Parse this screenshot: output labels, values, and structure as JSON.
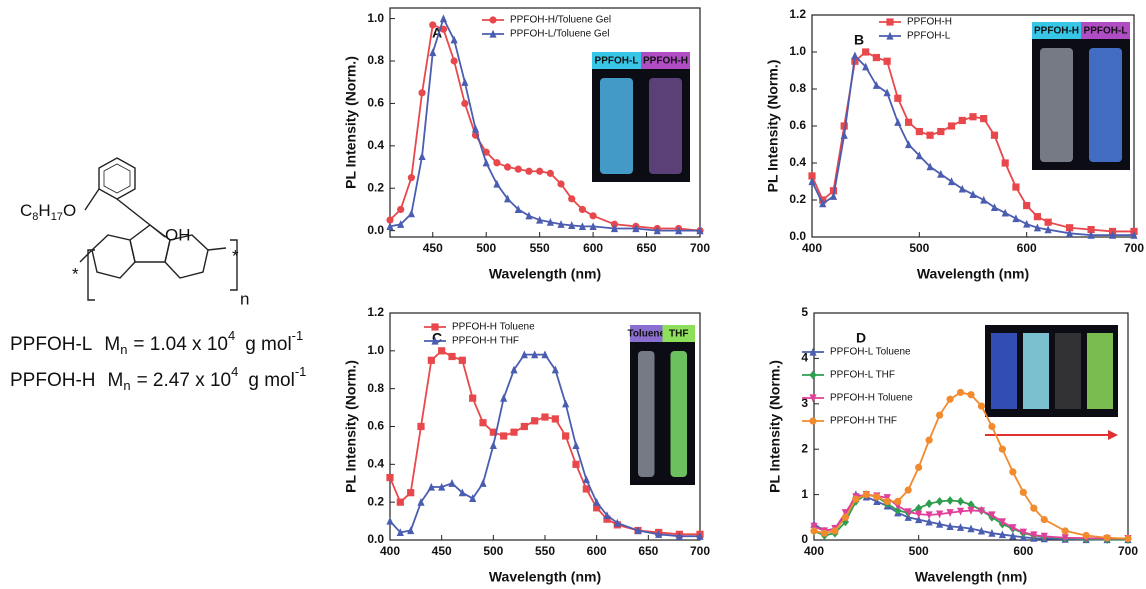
{
  "structure": {
    "substituent": [
      "C",
      "8",
      "H",
      "17",
      "O"
    ],
    "hydroxyl": "OH",
    "end_left": "*",
    "end_right": "*",
    "repeat": "n",
    "polymers": [
      {
        "name": "PPFOH-L",
        "mn": [
          "M",
          "n",
          "= 1.04 x 10",
          "4",
          "g mol",
          "-1"
        ]
      },
      {
        "name": "PPFOH-H",
        "mn": [
          "M",
          "n",
          "= 2.47 x 10",
          "4",
          "g mol",
          "-1"
        ]
      }
    ]
  },
  "chart_data": [
    {
      "type": "line",
      "panel_label": "A",
      "x_label": "Wavelength (nm)",
      "y_label": "PL Intensity (Norm.)",
      "inset_labels": [
        "PPFOH-L",
        "PPFOH-H"
      ],
      "x": [
        410,
        420,
        430,
        440,
        450,
        460,
        470,
        480,
        490,
        500,
        510,
        520,
        530,
        540,
        550,
        560,
        570,
        580,
        590,
        600,
        620,
        640,
        660,
        680,
        700
      ],
      "xlim": [
        410,
        700
      ],
      "xticks": [
        450,
        500,
        550,
        600,
        650,
        700
      ],
      "ylim": [
        -0.03,
        1.05
      ],
      "yticks": [
        {
          "value": 0,
          "label": "0.0"
        },
        0.2,
        0.4,
        0.6,
        0.8,
        {
          "value": 1,
          "label": "1.0"
        }
      ],
      "series": [
        {
          "name": "PPFOH-H/Toluene Gel",
          "color": "#e8474b",
          "marker": "circle",
          "values": [
            0.05,
            0.1,
            0.25,
            0.65,
            0.97,
            0.95,
            0.8,
            0.6,
            0.45,
            0.37,
            0.32,
            0.3,
            0.29,
            0.28,
            0.28,
            0.27,
            0.22,
            0.15,
            0.1,
            0.07,
            0.03,
            0.02,
            0.01,
            0.01,
            0
          ]
        },
        {
          "name": "PPFOH-L/Toluene Gel",
          "color": "#4a5db0",
          "marker": "triangle",
          "values": [
            0.02,
            0.03,
            0.08,
            0.35,
            0.84,
            1.0,
            0.9,
            0.7,
            0.48,
            0.32,
            0.22,
            0.15,
            0.1,
            0.07,
            0.05,
            0.04,
            0.03,
            0.025,
            0.02,
            0.02,
            0.01,
            0.01,
            0,
            0,
            0
          ]
        }
      ]
    },
    {
      "type": "line",
      "panel_label": "B",
      "x_label": "Wavelength (nm)",
      "y_label": "PL Intensity (Norm.)",
      "inset_labels": [
        "PPFOH-H",
        "PPFOH-L"
      ],
      "x": [
        400,
        410,
        420,
        430,
        440,
        450,
        460,
        470,
        480,
        490,
        500,
        510,
        520,
        530,
        540,
        550,
        560,
        570,
        580,
        590,
        600,
        610,
        620,
        640,
        660,
        680,
        700
      ],
      "xlim": [
        400,
        700
      ],
      "xticks": [
        400,
        500,
        600,
        700
      ],
      "ylim": [
        0,
        1.2
      ],
      "yticks": [
        {
          "value": 0,
          "label": "0.0"
        },
        0.2,
        0.4,
        0.6,
        0.8,
        {
          "value": 1,
          "label": "1.0"
        },
        1.2
      ],
      "series": [
        {
          "name": "PPFOH-H",
          "color": "#e8474b",
          "marker": "square",
          "values": [
            0.33,
            0.2,
            0.25,
            0.6,
            0.95,
            1.0,
            0.97,
            0.95,
            0.75,
            0.62,
            0.57,
            0.55,
            0.57,
            0.6,
            0.63,
            0.65,
            0.64,
            0.55,
            0.4,
            0.27,
            0.17,
            0.11,
            0.08,
            0.05,
            0.04,
            0.03,
            0.03
          ]
        },
        {
          "name": "PPFOH-L",
          "color": "#4a5db0",
          "marker": "triangle",
          "values": [
            0.3,
            0.18,
            0.22,
            0.55,
            0.98,
            0.92,
            0.82,
            0.78,
            0.62,
            0.5,
            0.44,
            0.38,
            0.34,
            0.3,
            0.26,
            0.23,
            0.2,
            0.16,
            0.13,
            0.1,
            0.07,
            0.05,
            0.04,
            0.02,
            0.01,
            0.01,
            0.01
          ]
        }
      ]
    },
    {
      "type": "line",
      "panel_label": "C",
      "x_label": "Wavelength (nm)",
      "y_label": "PL Intensity (Norm.)",
      "inset_labels": [
        "Toluene",
        "THF"
      ],
      "x": [
        400,
        410,
        420,
        430,
        440,
        450,
        460,
        470,
        480,
        490,
        500,
        510,
        520,
        530,
        540,
        550,
        560,
        570,
        580,
        590,
        600,
        610,
        620,
        640,
        660,
        680,
        700
      ],
      "xlim": [
        400,
        700
      ],
      "xticks": [
        400,
        450,
        500,
        550,
        600,
        650,
        700
      ],
      "ylim": [
        0,
        1.2
      ],
      "yticks": [
        {
          "value": 0,
          "label": "0.0"
        },
        0.2,
        0.4,
        0.6,
        0.8,
        {
          "value": 1,
          "label": "1.0"
        },
        1.2
      ],
      "series": [
        {
          "name": "PPFOH-H Toluene",
          "color": "#e8474b",
          "marker": "square",
          "values": [
            0.33,
            0.2,
            0.25,
            0.6,
            0.95,
            1.0,
            0.97,
            0.95,
            0.75,
            0.62,
            0.57,
            0.55,
            0.57,
            0.6,
            0.63,
            0.65,
            0.64,
            0.55,
            0.4,
            0.27,
            0.17,
            0.11,
            0.08,
            0.05,
            0.04,
            0.03,
            0.03
          ]
        },
        {
          "name": "PPFOH-H THF",
          "color": "#4a5db0",
          "marker": "triangle",
          "values": [
            0.1,
            0.04,
            0.05,
            0.2,
            0.28,
            0.28,
            0.3,
            0.25,
            0.22,
            0.3,
            0.5,
            0.75,
            0.9,
            0.98,
            0.98,
            0.98,
            0.9,
            0.72,
            0.5,
            0.32,
            0.2,
            0.13,
            0.09,
            0.05,
            0.03,
            0.02,
            0.02
          ]
        }
      ]
    },
    {
      "type": "line",
      "panel_label": "D",
      "x_label": "Wavelength (nm)",
      "y_label": "PL Intensity (Norm.)",
      "inset_labels": [],
      "x": [
        400,
        410,
        420,
        430,
        440,
        450,
        460,
        470,
        480,
        490,
        500,
        510,
        520,
        530,
        540,
        550,
        560,
        570,
        580,
        590,
        600,
        610,
        620,
        640,
        660,
        680,
        700
      ],
      "xlim": [
        400,
        700
      ],
      "xticks": [
        400,
        500,
        600,
        700
      ],
      "ylim": [
        0,
        5
      ],
      "yticks": [
        0,
        1,
        2,
        3,
        4,
        5
      ],
      "series": [
        {
          "name": "PPFOH-L Toluene",
          "color": "#4a5db0",
          "marker": "triangle",
          "values": [
            0.35,
            0.2,
            0.25,
            0.55,
            1.0,
            0.95,
            0.85,
            0.75,
            0.6,
            0.5,
            0.45,
            0.4,
            0.35,
            0.3,
            0.28,
            0.25,
            0.2,
            0.15,
            0.12,
            0.09,
            0.06,
            0.04,
            0.03,
            0.02,
            0.01,
            0.01,
            0.01
          ]
        },
        {
          "name": "PPFOH-L THF",
          "color": "#2e9e4f",
          "marker": "diamond",
          "values": [
            0.2,
            0.1,
            0.15,
            0.4,
            0.85,
            1.0,
            0.95,
            0.8,
            0.65,
            0.6,
            0.7,
            0.8,
            0.85,
            0.87,
            0.85,
            0.78,
            0.65,
            0.5,
            0.35,
            0.25,
            0.15,
            0.1,
            0.07,
            0.04,
            0.02,
            0.01,
            0.01
          ]
        },
        {
          "name": "PPFOH-H Toluene",
          "color": "#e0409a",
          "marker": "triangle-down",
          "values": [
            0.3,
            0.2,
            0.25,
            0.6,
            0.95,
            1.0,
            0.97,
            0.93,
            0.75,
            0.62,
            0.57,
            0.55,
            0.57,
            0.6,
            0.63,
            0.65,
            0.64,
            0.55,
            0.4,
            0.27,
            0.17,
            0.11,
            0.08,
            0.05,
            0.04,
            0.03,
            0.03
          ]
        },
        {
          "name": "PPFOH-H THF",
          "color": "#f28a2e",
          "marker": "circle",
          "values": [
            0.2,
            0.15,
            0.2,
            0.5,
            0.9,
            1.0,
            0.95,
            0.85,
            0.85,
            1.1,
            1.6,
            2.2,
            2.75,
            3.1,
            3.25,
            3.2,
            2.95,
            2.5,
            2.0,
            1.5,
            1.05,
            0.7,
            0.45,
            0.2,
            0.1,
            0.05,
            0.03
          ]
        }
      ]
    }
  ]
}
